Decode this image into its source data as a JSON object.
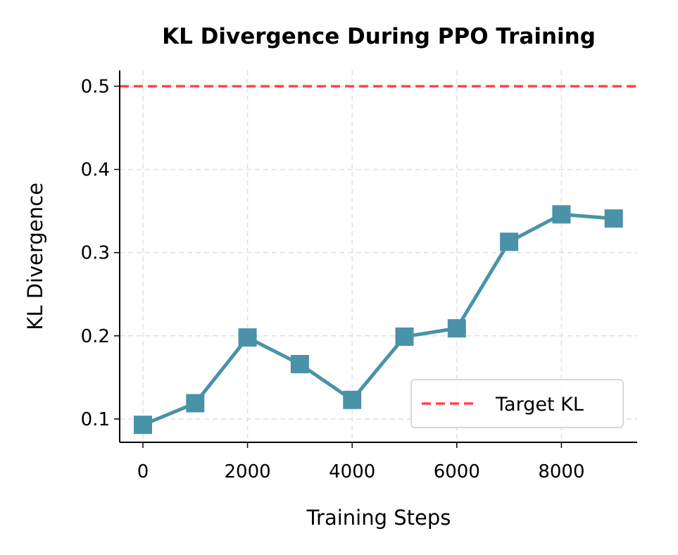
{
  "chart_data": {
    "type": "line",
    "title": "KL Divergence During PPO Training",
    "xlabel": "Training Steps",
    "ylabel": "KL Divergence",
    "x": [
      0,
      1000,
      2000,
      3000,
      4000,
      5000,
      6000,
      7000,
      8000,
      9000
    ],
    "series": [
      {
        "name": "KL",
        "values": [
          0.093,
          0.119,
          0.198,
          0.166,
          0.123,
          0.199,
          0.209,
          0.313,
          0.346,
          0.341
        ],
        "color": "#4a92a8",
        "marker": "square"
      }
    ],
    "reference_lines": [
      {
        "name": "Target KL",
        "y": 0.5,
        "color": "#ff4444",
        "style": "dashed"
      }
    ],
    "xlim": [
      -444,
      9448
    ],
    "ylim": [
      0.072,
      0.519
    ],
    "xticks": [
      0,
      2000,
      4000,
      6000,
      8000
    ],
    "xtick_labels": [
      "0",
      "2000",
      "4000",
      "6000",
      "8000"
    ],
    "yticks": [
      0.1,
      0.2,
      0.3,
      0.4,
      0.5
    ],
    "ytick_labels": [
      "0.1",
      "0.2",
      "0.3",
      "0.4",
      "0.5"
    ],
    "grid": true,
    "legend": {
      "placement": "lower-right",
      "entries": [
        "Target KL"
      ]
    }
  }
}
